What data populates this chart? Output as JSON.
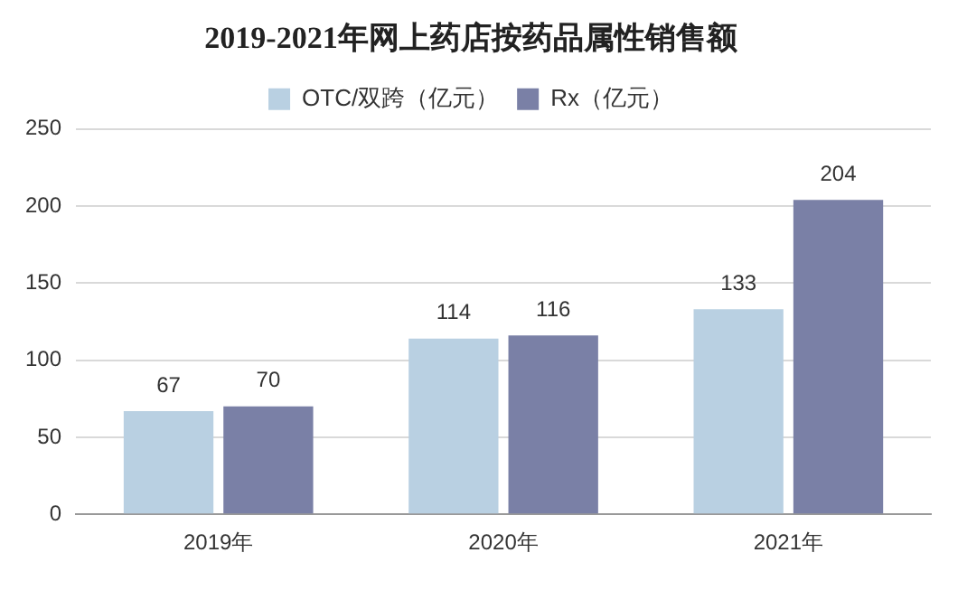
{
  "chart_data": {
    "type": "bar",
    "title": "2019-2021年网上药店按药品属性销售额",
    "categories": [
      "2019年",
      "2020年",
      "2021年"
    ],
    "series": [
      {
        "name": "OTC/双跨（亿元）",
        "color": "#b9d0e2",
        "values": [
          67,
          114,
          133
        ]
      },
      {
        "name": "Rx（亿元）",
        "color": "#7a80a6",
        "values": [
          70,
          116,
          204
        ]
      }
    ],
    "ylim": [
      0,
      250
    ],
    "yticks": [
      0,
      50,
      100,
      150,
      200,
      250
    ],
    "grid": "y",
    "legend": "top",
    "data_labels": true
  }
}
